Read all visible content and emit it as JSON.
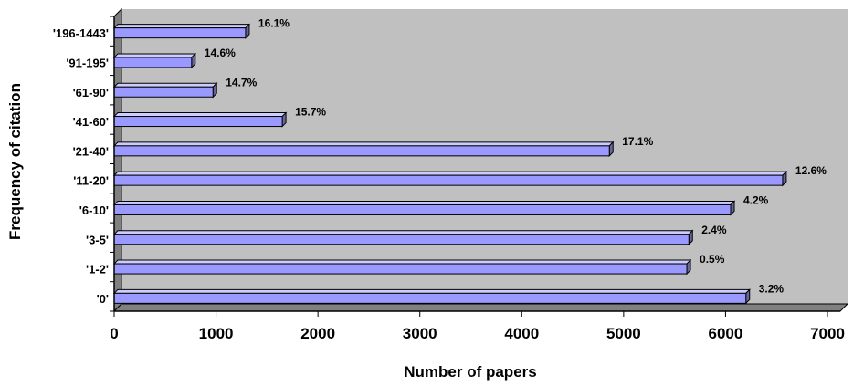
{
  "chart_data": {
    "type": "bar",
    "orientation": "horizontal",
    "title": "",
    "xlabel": "Number of papers",
    "ylabel": "Frequency of citation",
    "xlim": [
      0,
      7000
    ],
    "xticks": [
      "0",
      "1000",
      "2000",
      "3000",
      "4000",
      "5000",
      "6000",
      "7000"
    ],
    "categories": [
      "'0'",
      "'1-2'",
      "'3-5'",
      "'6-10'",
      "'11-20'",
      "'21-40'",
      "'41-60'",
      "'61-90'",
      "'91-195'",
      "'196-1443'"
    ],
    "values": [
      6200,
      5620,
      5640,
      6050,
      6560,
      4860,
      1650,
      970,
      760,
      1290
    ],
    "data_labels": [
      "3.2%",
      "0.5%",
      "2.4%",
      "4.2%",
      "12.6%",
      "17.1%",
      "15.7%",
      "14.7%",
      "14.6%",
      "16.1%"
    ],
    "grid": false,
    "legend": "none",
    "colors": {
      "bar_front": "#9999ff",
      "bar_top": "#ccccff",
      "bar_side": "#666699",
      "plot_wall": "#c0c0c0",
      "floor": "#808080"
    }
  }
}
